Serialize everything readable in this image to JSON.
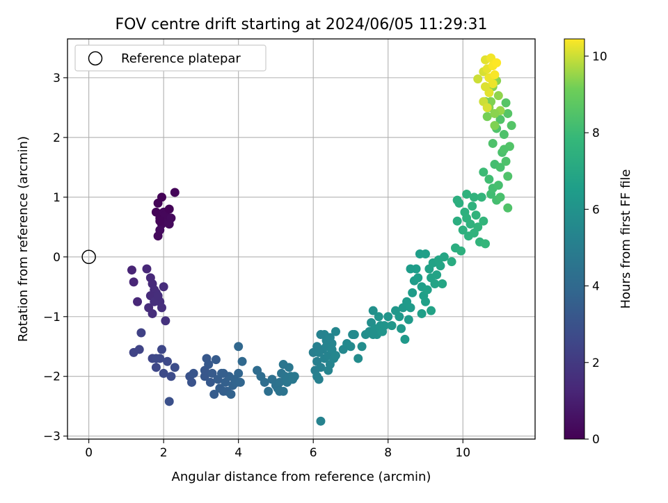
{
  "chart_data": {
    "type": "scatter",
    "title": "FOV centre drift starting at 2024/06/05 11:29:31",
    "xlabel": "Angular distance from reference (arcmin)",
    "ylabel": "Rotation from reference (arcmin)",
    "xlim": [
      -0.57,
      11.93
    ],
    "ylim": [
      -3.05,
      3.65
    ],
    "xticks": [
      0,
      2,
      4,
      6,
      8,
      10
    ],
    "yticks": [
      -3,
      -2,
      -1,
      0,
      1,
      2,
      3
    ],
    "grid": true,
    "legend": {
      "placement": "top-left",
      "entries": [
        {
          "label": "Reference platepar",
          "marker": "open-circle"
        }
      ]
    },
    "reference_point": {
      "x": 0,
      "y": 0
    },
    "colorbar": {
      "label": "Hours from first FF file",
      "colormap": "viridis",
      "range": [
        0,
        10.45
      ],
      "ticks": [
        0,
        2,
        4,
        6,
        8,
        10
      ]
    },
    "points_columns": [
      "x",
      "y",
      "hours"
    ],
    "points": [
      [
        1.8,
        0.75,
        0.1
      ],
      [
        1.9,
        0.65,
        0.15
      ],
      [
        2.0,
        0.75,
        0.2
      ],
      [
        1.85,
        0.9,
        0.12
      ],
      [
        1.95,
        0.55,
        0.25
      ],
      [
        2.1,
        0.6,
        0.3
      ],
      [
        1.9,
        0.45,
        0.35
      ],
      [
        1.85,
        0.35,
        0.3
      ],
      [
        2.05,
        0.7,
        0.2
      ],
      [
        2.15,
        0.8,
        0.1
      ],
      [
        2.2,
        0.65,
        0.28
      ],
      [
        2.3,
        1.08,
        0.15
      ],
      [
        1.95,
        1.0,
        0.08
      ],
      [
        2.15,
        0.55,
        0.3
      ],
      [
        1.9,
        0.6,
        0.18
      ],
      [
        1.15,
        -0.22,
        1.2
      ],
      [
        1.2,
        -0.42,
        1.25
      ],
      [
        1.3,
        -0.75,
        1.3
      ],
      [
        1.55,
        -0.2,
        1.3
      ],
      [
        1.65,
        -0.35,
        1.35
      ],
      [
        1.7,
        -0.45,
        1.4
      ],
      [
        1.75,
        -0.55,
        1.45
      ],
      [
        1.8,
        -0.6,
        1.5
      ],
      [
        1.85,
        -0.7,
        1.55
      ],
      [
        1.9,
        -0.75,
        1.6
      ],
      [
        1.95,
        -0.85,
        1.6
      ],
      [
        2.0,
        -0.5,
        1.5
      ],
      [
        1.65,
        -0.65,
        1.45
      ],
      [
        1.6,
        -0.85,
        1.5
      ],
      [
        1.7,
        -0.95,
        1.55
      ],
      [
        1.75,
        -0.75,
        1.6
      ],
      [
        2.05,
        -1.07,
        1.7
      ],
      [
        1.85,
        -0.65,
        1.55
      ],
      [
        1.4,
        -1.27,
        2.3
      ],
      [
        1.2,
        -1.6,
        2.4
      ],
      [
        1.35,
        -1.55,
        2.4
      ],
      [
        1.7,
        -1.7,
        2.5
      ],
      [
        1.8,
        -1.85,
        2.55
      ],
      [
        1.9,
        -1.7,
        2.6
      ],
      [
        1.95,
        -1.55,
        2.55
      ],
      [
        2.0,
        -1.95,
        2.7
      ],
      [
        2.1,
        -1.75,
        2.65
      ],
      [
        2.2,
        -2.0,
        2.75
      ],
      [
        2.3,
        -1.85,
        2.8
      ],
      [
        2.15,
        -2.42,
        2.9
      ],
      [
        1.8,
        -1.7,
        2.6
      ],
      [
        2.7,
        -2.0,
        3.0
      ],
      [
        2.75,
        -2.1,
        3.05
      ],
      [
        2.8,
        -1.95,
        3.1
      ],
      [
        3.1,
        -2.0,
        3.2
      ],
      [
        3.15,
        -1.7,
        3.25
      ],
      [
        3.2,
        -1.8,
        3.3
      ],
      [
        3.25,
        -2.1,
        3.3
      ],
      [
        3.3,
        -1.95,
        3.35
      ],
      [
        3.35,
        -2.3,
        3.4
      ],
      [
        3.4,
        -1.72,
        3.35
      ],
      [
        3.45,
        -2.05,
        3.45
      ],
      [
        3.5,
        -2.2,
        3.5
      ],
      [
        3.55,
        -1.95,
        3.55
      ],
      [
        3.6,
        -2.25,
        3.55
      ],
      [
        3.65,
        -2.1,
        3.6
      ],
      [
        3.7,
        -2.25,
        3.6
      ],
      [
        3.75,
        -2.0,
        3.65
      ],
      [
        3.8,
        -2.3,
        3.7
      ],
      [
        3.85,
        -2.15,
        3.7
      ],
      [
        3.9,
        -2.05,
        3.75
      ],
      [
        3.95,
        -2.1,
        3.8
      ],
      [
        4.0,
        -1.95,
        3.8
      ],
      [
        4.05,
        -2.1,
        3.85
      ],
      [
        4.0,
        -1.5,
        3.9
      ],
      [
        4.1,
        -1.75,
        3.95
      ],
      [
        3.1,
        -1.9,
        3.2
      ],
      [
        3.6,
        -1.95,
        3.55
      ],
      [
        4.5,
        -1.9,
        4.1
      ],
      [
        4.6,
        -2.0,
        4.15
      ],
      [
        4.7,
        -2.1,
        4.2
      ],
      [
        4.8,
        -2.25,
        4.25
      ],
      [
        4.9,
        -2.05,
        4.3
      ],
      [
        5.0,
        -2.15,
        4.35
      ],
      [
        5.05,
        -2.2,
        4.4
      ],
      [
        5.1,
        -2.1,
        4.45
      ],
      [
        5.15,
        -1.95,
        4.5
      ],
      [
        5.2,
        -2.25,
        4.5
      ],
      [
        5.25,
        -2.0,
        4.55
      ],
      [
        5.3,
        -2.1,
        4.6
      ],
      [
        5.35,
        -1.85,
        4.65
      ],
      [
        5.4,
        -2.0,
        4.7
      ],
      [
        5.5,
        -2.0,
        4.75
      ],
      [
        5.2,
        -1.8,
        4.6
      ],
      [
        5.1,
        -2.25,
        4.45
      ],
      [
        5.3,
        -2.05,
        4.6
      ],
      [
        5.45,
        -2.05,
        4.7
      ],
      [
        6.0,
        -1.6,
        5.0
      ],
      [
        6.05,
        -1.9,
        5.0
      ],
      [
        6.1,
        -1.75,
        5.05
      ],
      [
        6.15,
        -2.05,
        5.1
      ],
      [
        6.2,
        -1.85,
        5.1
      ],
      [
        6.25,
        -1.55,
        5.15
      ],
      [
        6.3,
        -1.7,
        5.2
      ],
      [
        6.35,
        -1.5,
        5.25
      ],
      [
        6.4,
        -1.65,
        5.25
      ],
      [
        6.45,
        -1.8,
        5.3
      ],
      [
        6.3,
        -1.3,
        5.3
      ],
      [
        6.5,
        -1.45,
        5.35
      ],
      [
        6.55,
        -1.7,
        5.35
      ],
      [
        6.6,
        -1.25,
        5.4
      ],
      [
        6.2,
        -1.3,
        5.2
      ],
      [
        6.35,
        -1.4,
        5.25
      ],
      [
        6.15,
        -1.6,
        5.15
      ],
      [
        6.4,
        -1.9,
        5.3
      ],
      [
        6.5,
        -1.55,
        5.35
      ],
      [
        6.1,
        -2.0,
        5.1
      ],
      [
        6.2,
        -2.75,
        5.2
      ],
      [
        6.1,
        -1.5,
        5.1
      ],
      [
        6.45,
        -1.35,
        5.3
      ],
      [
        6.6,
        -1.65,
        5.4
      ],
      [
        6.8,
        -1.55,
        5.5
      ],
      [
        6.9,
        -1.45,
        5.55
      ],
      [
        7.0,
        -1.5,
        5.6
      ],
      [
        7.1,
        -1.3,
        5.65
      ],
      [
        7.2,
        -1.7,
        5.7
      ],
      [
        7.3,
        -1.5,
        5.75
      ],
      [
        7.4,
        -1.3,
        5.8
      ],
      [
        7.5,
        -1.25,
        5.85
      ],
      [
        7.55,
        -1.1,
        5.85
      ],
      [
        7.6,
        -0.9,
        5.9
      ],
      [
        7.65,
        -1.2,
        5.95
      ],
      [
        7.7,
        -1.3,
        5.95
      ],
      [
        7.75,
        -1.0,
        6.0
      ],
      [
        7.8,
        -1.15,
        6.0
      ],
      [
        7.85,
        -1.25,
        6.05
      ],
      [
        7.9,
        -1.15,
        6.05
      ],
      [
        7.6,
        -1.3,
        5.9
      ],
      [
        7.05,
        -1.3,
        5.6
      ],
      [
        8.0,
        -1.0,
        6.1
      ],
      [
        8.1,
        -1.15,
        6.15
      ],
      [
        8.2,
        -0.9,
        6.2
      ],
      [
        8.3,
        -1.0,
        6.25
      ],
      [
        8.35,
        -1.2,
        6.25
      ],
      [
        8.4,
        -0.85,
        6.3
      ],
      [
        8.45,
        -1.38,
        6.3
      ],
      [
        8.5,
        -0.75,
        6.35
      ],
      [
        8.55,
        -1.05,
        6.35
      ],
      [
        8.6,
        -0.85,
        6.4
      ],
      [
        8.65,
        -0.6,
        6.45
      ],
      [
        8.7,
        -0.4,
        6.45
      ],
      [
        8.75,
        -0.2,
        6.5
      ],
      [
        8.8,
        -0.35,
        6.55
      ],
      [
        8.85,
        0.05,
        6.55
      ],
      [
        8.9,
        -0.5,
        6.6
      ],
      [
        8.95,
        -0.65,
        6.6
      ],
      [
        9.0,
        -0.75,
        6.65
      ],
      [
        9.05,
        -0.55,
        6.7
      ],
      [
        9.1,
        -0.2,
        6.7
      ],
      [
        9.15,
        -0.35,
        6.75
      ],
      [
        9.2,
        -0.1,
        6.75
      ],
      [
        9.25,
        -0.45,
        6.8
      ],
      [
        9.3,
        -0.3,
        6.8
      ],
      [
        9.35,
        -0.05,
        6.85
      ],
      [
        9.4,
        -0.15,
        6.85
      ],
      [
        9.45,
        -0.45,
        6.9
      ],
      [
        9.5,
        0.0,
        6.9
      ],
      [
        8.9,
        -0.95,
        6.6
      ],
      [
        9.0,
        0.05,
        6.6
      ],
      [
        9.15,
        -0.9,
        6.75
      ],
      [
        8.6,
        -0.2,
        6.45
      ],
      [
        9.7,
        -0.08,
        7.2
      ],
      [
        9.8,
        0.15,
        7.3
      ],
      [
        9.85,
        0.6,
        7.3
      ],
      [
        9.9,
        0.9,
        7.35
      ],
      [
        9.95,
        0.1,
        7.4
      ],
      [
        10.0,
        0.45,
        7.4
      ],
      [
        10.05,
        0.75,
        7.45
      ],
      [
        10.1,
        1.05,
        7.5
      ],
      [
        10.15,
        0.35,
        7.5
      ],
      [
        10.2,
        0.55,
        7.55
      ],
      [
        10.25,
        0.85,
        7.55
      ],
      [
        10.3,
        1.0,
        7.6
      ],
      [
        10.35,
        0.7,
        7.6
      ],
      [
        10.4,
        0.5,
        7.65
      ],
      [
        10.45,
        0.25,
        7.65
      ],
      [
        10.5,
        1.0,
        7.7
      ],
      [
        10.55,
        0.6,
        7.7
      ],
      [
        10.6,
        0.22,
        7.75
      ],
      [
        9.85,
        0.95,
        7.35
      ],
      [
        10.3,
        0.4,
        7.6
      ],
      [
        10.1,
        0.65,
        7.5
      ],
      [
        10.55,
        1.42,
        8.0
      ],
      [
        10.7,
        1.3,
        8.1
      ],
      [
        10.75,
        1.05,
        8.1
      ],
      [
        10.8,
        1.15,
        8.15
      ],
      [
        10.85,
        1.55,
        8.2
      ],
      [
        10.9,
        0.95,
        8.2
      ],
      [
        10.95,
        1.2,
        8.25
      ],
      [
        11.0,
        1.5,
        8.3
      ],
      [
        11.05,
        1.75,
        8.35
      ],
      [
        11.1,
        2.05,
        8.4
      ],
      [
        11.15,
        1.6,
        8.4
      ],
      [
        11.2,
        1.35,
        8.45
      ],
      [
        11.25,
        1.85,
        8.5
      ],
      [
        11.3,
        2.2,
        8.55
      ],
      [
        11.2,
        0.82,
        8.45
      ],
      [
        10.8,
        1.9,
        8.4
      ],
      [
        10.9,
        2.15,
        8.45
      ],
      [
        11.0,
        2.3,
        8.5
      ],
      [
        11.15,
        2.58,
        8.6
      ],
      [
        11.2,
        2.4,
        8.6
      ],
      [
        11.1,
        1.8,
        8.45
      ],
      [
        11.0,
        1.0,
        8.3
      ],
      [
        10.65,
        2.35,
        9.2
      ],
      [
        10.75,
        2.6,
        9.3
      ],
      [
        10.8,
        2.85,
        9.35
      ],
      [
        10.9,
        2.95,
        9.4
      ],
      [
        10.95,
        2.7,
        9.45
      ],
      [
        11.0,
        2.45,
        9.5
      ],
      [
        10.7,
        2.5,
        9.3
      ],
      [
        10.85,
        2.4,
        9.4
      ],
      [
        10.6,
        2.6,
        9.2
      ],
      [
        10.85,
        2.2,
        9.3
      ],
      [
        10.4,
        2.98,
        10.0
      ],
      [
        10.55,
        3.1,
        10.1
      ],
      [
        10.6,
        3.3,
        10.2
      ],
      [
        10.65,
        3.15,
        10.25
      ],
      [
        10.7,
        3.0,
        10.3
      ],
      [
        10.75,
        3.33,
        10.35
      ],
      [
        10.8,
        3.2,
        10.4
      ],
      [
        10.85,
        3.05,
        10.4
      ],
      [
        10.9,
        3.25,
        10.45
      ],
      [
        10.55,
        2.6,
        10.0
      ],
      [
        10.65,
        2.5,
        10.1
      ],
      [
        10.7,
        2.75,
        10.2
      ],
      [
        10.8,
        2.9,
        10.3
      ],
      [
        10.6,
        2.85,
        10.15
      ]
    ]
  }
}
